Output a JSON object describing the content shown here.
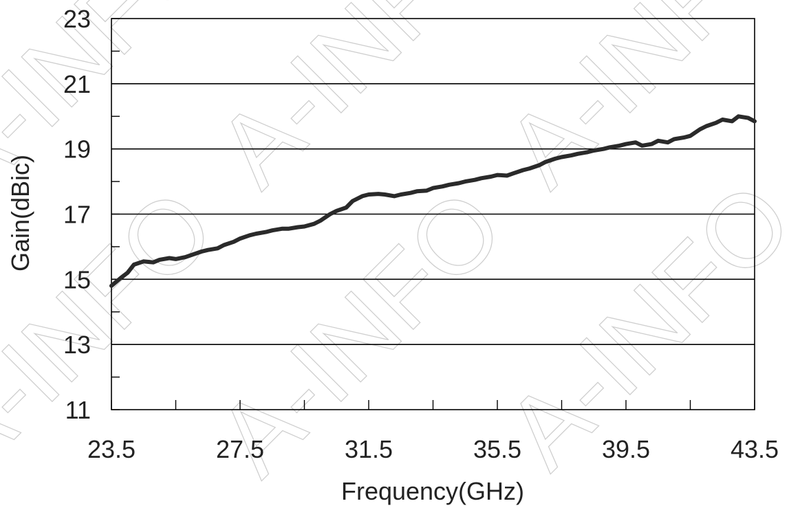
{
  "chart_data": {
    "type": "line",
    "title": "",
    "xlabel": "Frequency(GHz)",
    "ylabel": "Gain(dBic)",
    "xlim": [
      23.5,
      43.5
    ],
    "ylim": [
      11,
      23
    ],
    "x_tick_labels": [
      "23.5",
      "27.5",
      "31.5",
      "35.5",
      "39.5",
      "43.5"
    ],
    "x_ticks": [
      23.5,
      27.5,
      31.5,
      35.5,
      39.5,
      43.5
    ],
    "x_minor_ticks": [
      25.5,
      29.5,
      33.5,
      37.5,
      41.5
    ],
    "y_tick_labels": [
      "11",
      "13",
      "15",
      "17",
      "19",
      "21",
      "23"
    ],
    "y_ticks": [
      11,
      13,
      15,
      17,
      19,
      21,
      23
    ],
    "y_minor_ticks": [
      12,
      14,
      16,
      18,
      20,
      22
    ],
    "grid": "horizontal major lines",
    "legend": "none",
    "series": [
      {
        "color": "#2a2a2a",
        "x": [
          23.5,
          23.8,
          24.0,
          24.2,
          24.5,
          24.8,
          25.0,
          25.3,
          25.5,
          25.8,
          26.0,
          26.3,
          26.5,
          26.8,
          27.0,
          27.3,
          27.5,
          27.8,
          28.0,
          28.3,
          28.5,
          28.8,
          29.0,
          29.3,
          29.5,
          29.8,
          30.0,
          30.3,
          30.5,
          30.8,
          31.0,
          31.3,
          31.5,
          31.8,
          32.0,
          32.3,
          32.5,
          32.8,
          33.0,
          33.3,
          33.5,
          33.8,
          34.0,
          34.3,
          34.5,
          34.8,
          35.0,
          35.3,
          35.5,
          35.8,
          36.0,
          36.3,
          36.5,
          36.8,
          37.0,
          37.3,
          37.5,
          37.8,
          38.0,
          38.3,
          38.5,
          38.8,
          39.0,
          39.3,
          39.5,
          39.8,
          40.0,
          40.3,
          40.5,
          40.8,
          41.0,
          41.3,
          41.5,
          41.8,
          42.0,
          42.3,
          42.5,
          42.8,
          43.0,
          43.3,
          43.5
        ],
        "y": [
          14.8,
          15.05,
          15.2,
          15.45,
          15.55,
          15.52,
          15.6,
          15.65,
          15.62,
          15.68,
          15.75,
          15.85,
          15.9,
          15.95,
          16.05,
          16.15,
          16.25,
          16.35,
          16.4,
          16.45,
          16.5,
          16.55,
          16.55,
          16.6,
          16.62,
          16.7,
          16.8,
          17.0,
          17.1,
          17.2,
          17.4,
          17.55,
          17.6,
          17.62,
          17.6,
          17.55,
          17.6,
          17.65,
          17.7,
          17.72,
          17.8,
          17.85,
          17.9,
          17.95,
          18.0,
          18.05,
          18.1,
          18.15,
          18.2,
          18.18,
          18.25,
          18.35,
          18.4,
          18.5,
          18.6,
          18.7,
          18.75,
          18.8,
          18.85,
          18.9,
          18.95,
          19.0,
          19.05,
          19.1,
          19.15,
          19.2,
          19.1,
          19.15,
          19.25,
          19.2,
          19.3,
          19.35,
          19.4,
          19.6,
          19.7,
          19.8,
          19.9,
          19.85,
          20.0,
          19.95,
          19.85
        ]
      }
    ]
  }
}
